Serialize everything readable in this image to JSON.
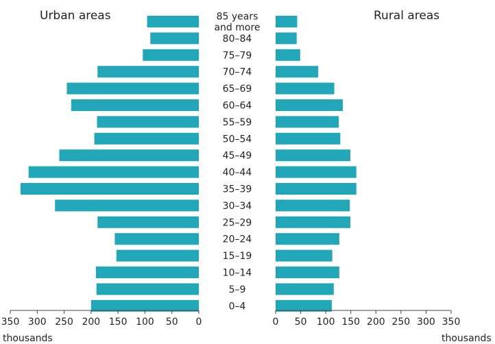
{
  "colors": {
    "bar": "#22a7b9",
    "axis": "#444444",
    "text": "#222222"
  },
  "chart_data": {
    "type": "bar",
    "orientation": "horizontal",
    "layout": "population-pyramid",
    "categories": [
      "0–4",
      "5–9",
      "10–14",
      "15–19",
      "20–24",
      "25–29",
      "30–34",
      "35–39",
      "40–44",
      "45–49",
      "50–54",
      "55–59",
      "60–64",
      "65–69",
      "70–74",
      "75–79",
      "80–84",
      "85 years and more"
    ],
    "category_label_lines": {
      "85 years and more": [
        "85 years",
        "and more"
      ]
    },
    "series": [
      {
        "name": "Urban areas",
        "side": "left",
        "values": [
          200,
          190,
          191,
          153,
          156,
          188,
          267,
          331,
          316,
          259,
          194,
          189,
          237,
          245,
          188,
          104,
          90,
          96
        ]
      },
      {
        "name": "Rural areas",
        "side": "right",
        "values": [
          112,
          116,
          127,
          113,
          127,
          149,
          148,
          161,
          161,
          149,
          129,
          126,
          134,
          117,
          85,
          49,
          42,
          43
        ]
      }
    ],
    "left_axis": {
      "ticks": [
        350,
        300,
        250,
        200,
        150,
        100,
        50,
        0
      ],
      "range": [
        0,
        350
      ],
      "label": "thousands"
    },
    "right_axis": {
      "ticks": [
        0,
        50,
        100,
        150,
        200,
        250,
        300,
        350
      ],
      "range": [
        0,
        350
      ],
      "label": "thousands"
    },
    "grid": false
  }
}
